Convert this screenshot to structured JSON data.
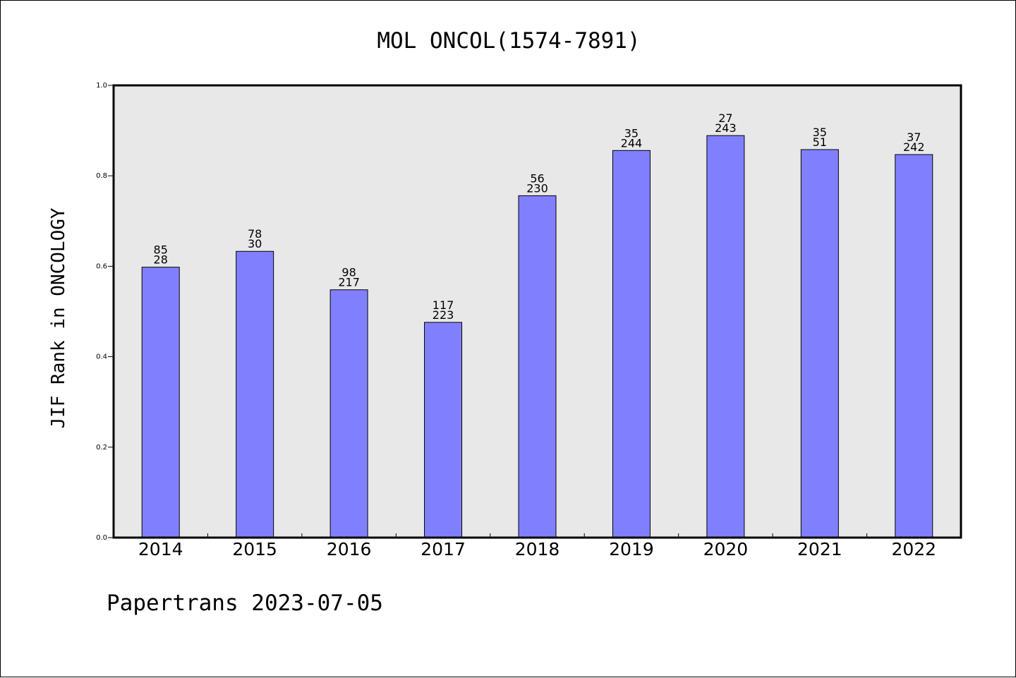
{
  "chart_data": {
    "type": "bar",
    "title": "MOL ONCOL(1574-7891)",
    "ylabel": "JIF Rank in ONCOLOGY",
    "xlabel": "",
    "categories": [
      "2014",
      "2015",
      "2016",
      "2017",
      "2018",
      "2019",
      "2020",
      "2021",
      "2022"
    ],
    "values": [
      0.598,
      0.633,
      0.548,
      0.476,
      0.756,
      0.856,
      0.889,
      0.858,
      0.847
    ],
    "labels_top": [
      "85",
      "78",
      "98",
      "117",
      "56",
      "35",
      "27",
      "35",
      "37"
    ],
    "labels_bottom": [
      "28",
      "30",
      "217",
      "223",
      "230",
      "244",
      "243",
      "51",
      "242"
    ],
    "ylim": [
      0.0,
      1.0
    ],
    "yticks": [
      "0.0",
      "0.2",
      "0.4",
      "0.6",
      "0.8",
      "1.0"
    ],
    "bar_color": "#8080ff",
    "plot_background": "#e8e8e8",
    "grid": false,
    "legend": "none"
  },
  "footer": "Papertrans 2023-07-05"
}
